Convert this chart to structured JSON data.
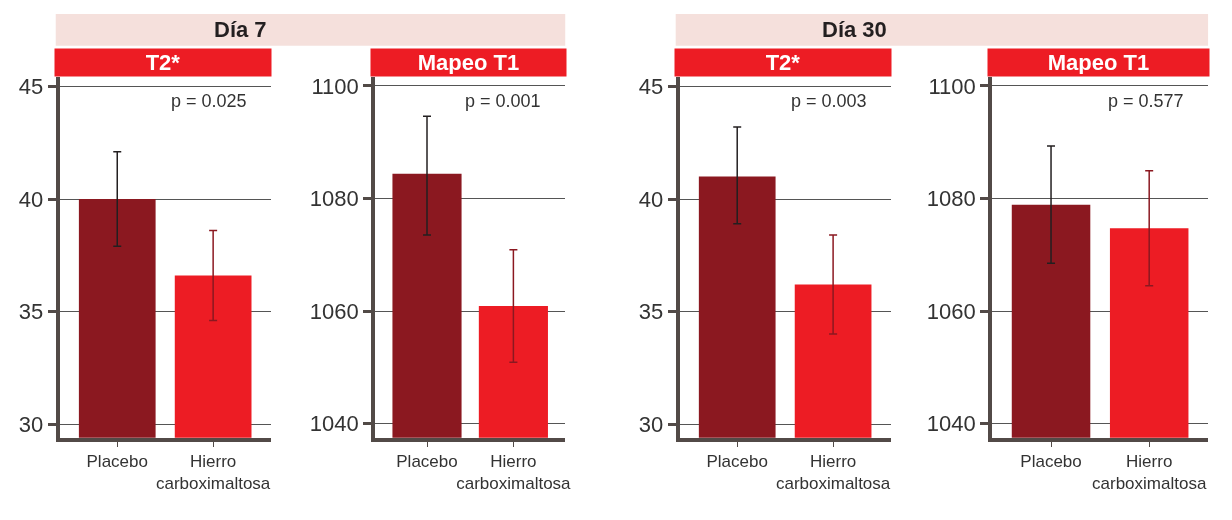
{
  "chart_data": [
    {
      "type": "bar",
      "subtitle": "Día 7",
      "title": "T2*",
      "categories": [
        "Placebo",
        "Hierro carboximaltosa"
      ],
      "values": [
        40.0,
        36.6
      ],
      "colors": [
        "#8b1820",
        "#ed1c24"
      ],
      "errors": [
        [
          37.9,
          42.1
        ],
        [
          34.6,
          38.6
        ]
      ],
      "ylim": [
        29.4,
        45.4
      ],
      "yticks": [
        30,
        35,
        40,
        45
      ],
      "grid": "y",
      "annotations": [
        "p = 0.025"
      ]
    },
    {
      "type": "bar",
      "title": "Mapeo T1",
      "categories": [
        "Placebo",
        "Hierro carboximaltosa"
      ],
      "values": [
        1084.4,
        1060.9
      ],
      "colors": [
        "#8b1820",
        "#ed1c24"
      ],
      "errors": [
        [
          1073.5,
          1094.6
        ],
        [
          1050.9,
          1070.9
        ]
      ],
      "ylim": [
        1037.5,
        1101.5
      ],
      "yticks": [
        1040,
        1060,
        1080,
        1100
      ],
      "grid": "y",
      "annotations": [
        "p = 0.001"
      ]
    },
    {
      "type": "bar",
      "subtitle": "Día 30",
      "title": "T2*",
      "categories": [
        "Placebo",
        "Hierro carboximaltosa"
      ],
      "values": [
        41.0,
        36.2
      ],
      "colors": [
        "#8b1820",
        "#ed1c24"
      ],
      "errors": [
        [
          38.9,
          43.2
        ],
        [
          34.0,
          38.4
        ]
      ],
      "ylim": [
        29.4,
        45.4
      ],
      "yticks": [
        30,
        35,
        40,
        45
      ],
      "grid": "y",
      "annotations": [
        "p = 0.003"
      ]
    },
    {
      "type": "bar",
      "title": "Mapeo T1",
      "categories": [
        "Placebo",
        "Hierro carboximaltosa"
      ],
      "values": [
        1078.9,
        1074.7
      ],
      "colors": [
        "#8b1820",
        "#ed1c24"
      ],
      "errors": [
        [
          1068.5,
          1089.3
        ],
        [
          1064.5,
          1084.9
        ]
      ],
      "ylim": [
        1037.5,
        1101.5
      ],
      "yticks": [
        1040,
        1060,
        1080,
        1100
      ],
      "grid": "y",
      "annotations": [
        "p = 0.577"
      ]
    }
  ]
}
